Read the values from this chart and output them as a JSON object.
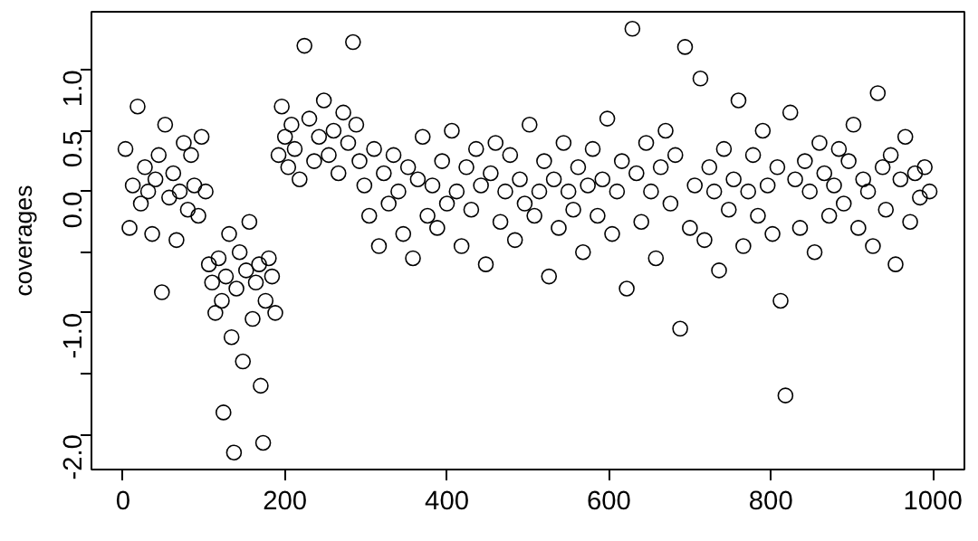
{
  "chart_data": {
    "type": "scatter",
    "ylabel": "coverages",
    "marker": "circle",
    "grid": false,
    "xlim": [
      -39,
      1039
    ],
    "ylim": [
      -2.29,
      1.48
    ],
    "xticks": [
      0,
      200,
      400,
      600,
      800,
      1000
    ],
    "yticks": [
      {
        "value": -2.0,
        "label": "-2.0"
      },
      {
        "value": -1.5,
        "label": null
      },
      {
        "value": -1.0,
        "label": "-1.0"
      },
      {
        "value": -0.5,
        "label": null
      },
      {
        "value": 0.0,
        "label": "0.0"
      },
      {
        "value": 0.5,
        "label": "0.5"
      },
      {
        "value": 1.0,
        "label": "1.0"
      }
    ],
    "series": [
      {
        "color": "#000000",
        "x": [
          3,
          8,
          12,
          18,
          22,
          27,
          31,
          36,
          40,
          44,
          48,
          52,
          57,
          62,
          66,
          70,
          75,
          80,
          84,
          88,
          93,
          97,
          102,
          106,
          110,
          114,
          118,
          122,
          124,
          127,
          131,
          134,
          137,
          140,
          144,
          148,
          152,
          156,
          160,
          164,
          168,
          170,
          173,
          176,
          180,
          184,
          188,
          192,
          196,
          200,
          204,
          208,
          212,
          218,
          224,
          230,
          236,
          242,
          248,
          254,
          260,
          266,
          272,
          278,
          284,
          288,
          292,
          298,
          304,
          310,
          316,
          322,
          328,
          334,
          340,
          346,
          352,
          358,
          364,
          370,
          376,
          382,
          388,
          394,
          400,
          406,
          412,
          418,
          424,
          430,
          436,
          442,
          448,
          454,
          460,
          466,
          472,
          478,
          484,
          490,
          496,
          502,
          508,
          514,
          520,
          526,
          532,
          538,
          544,
          550,
          556,
          562,
          568,
          574,
          580,
          586,
          592,
          598,
          604,
          610,
          616,
          622,
          629,
          634,
          640,
          646,
          652,
          658,
          664,
          670,
          676,
          682,
          688,
          694,
          700,
          706,
          713,
          718,
          724,
          730,
          736,
          742,
          748,
          754,
          760,
          766,
          772,
          778,
          784,
          790,
          796,
          802,
          808,
          812,
          818,
          824,
          830,
          836,
          842,
          848,
          854,
          860,
          866,
          872,
          878,
          884,
          890,
          896,
          902,
          908,
          914,
          920,
          926,
          932,
          938,
          942,
          948,
          954,
          960,
          966,
          972,
          978,
          984,
          990,
          996
        ],
        "values": [
          0.35,
          -0.3,
          0.05,
          0.7,
          -0.1,
          0.2,
          0.0,
          -0.35,
          0.1,
          0.3,
          -0.83,
          0.55,
          -0.05,
          0.15,
          -0.4,
          0.0,
          0.4,
          -0.15,
          0.3,
          0.05,
          -0.2,
          0.45,
          0.0,
          -0.6,
          -0.75,
          -1.0,
          -0.55,
          -0.9,
          -1.82,
          -0.7,
          -0.35,
          -1.2,
          -2.15,
          -0.8,
          -0.5,
          -1.4,
          -0.65,
          -0.25,
          -1.05,
          -0.75,
          -0.6,
          -1.6,
          -2.07,
          -0.9,
          -0.55,
          -0.7,
          -1.0,
          0.3,
          0.7,
          0.45,
          0.2,
          0.55,
          0.35,
          0.1,
          1.2,
          0.6,
          0.25,
          0.45,
          0.75,
          0.3,
          0.5,
          0.15,
          0.65,
          0.4,
          1.23,
          0.55,
          0.25,
          0.05,
          -0.2,
          0.35,
          -0.45,
          0.15,
          -0.1,
          0.3,
          0.0,
          -0.35,
          0.2,
          -0.55,
          0.1,
          0.45,
          -0.2,
          0.05,
          -0.3,
          0.25,
          -0.1,
          0.5,
          0.0,
          -0.45,
          0.2,
          -0.15,
          0.35,
          0.05,
          -0.6,
          0.15,
          0.4,
          -0.25,
          0.0,
          0.3,
          -0.4,
          0.1,
          -0.1,
          0.55,
          -0.2,
          0.0,
          0.25,
          -0.7,
          0.1,
          -0.3,
          0.4,
          0.0,
          -0.15,
          0.2,
          -0.5,
          0.05,
          0.35,
          -0.2,
          0.1,
          0.6,
          -0.35,
          0.0,
          0.25,
          -0.8,
          1.34,
          0.15,
          -0.25,
          0.4,
          0.0,
          -0.55,
          0.2,
          0.5,
          -0.1,
          0.3,
          -1.13,
          1.19,
          -0.3,
          0.05,
          0.93,
          -0.4,
          0.2,
          0.0,
          -0.65,
          0.35,
          -0.15,
          0.1,
          0.75,
          -0.45,
          0.0,
          0.3,
          -0.2,
          0.5,
          0.05,
          -0.35,
          0.2,
          -0.9,
          -1.68,
          0.65,
          0.1,
          -0.3,
          0.25,
          0.0,
          -0.5,
          0.4,
          0.15,
          -0.2,
          0.05,
          0.35,
          -0.1,
          0.25,
          0.55,
          -0.3,
          0.1,
          0.0,
          -0.45,
          0.81,
          0.2,
          -0.15,
          0.3,
          -0.6,
          0.1,
          0.45,
          -0.25,
          0.15,
          -0.05,
          0.2,
          0.0
        ]
      }
    ]
  }
}
